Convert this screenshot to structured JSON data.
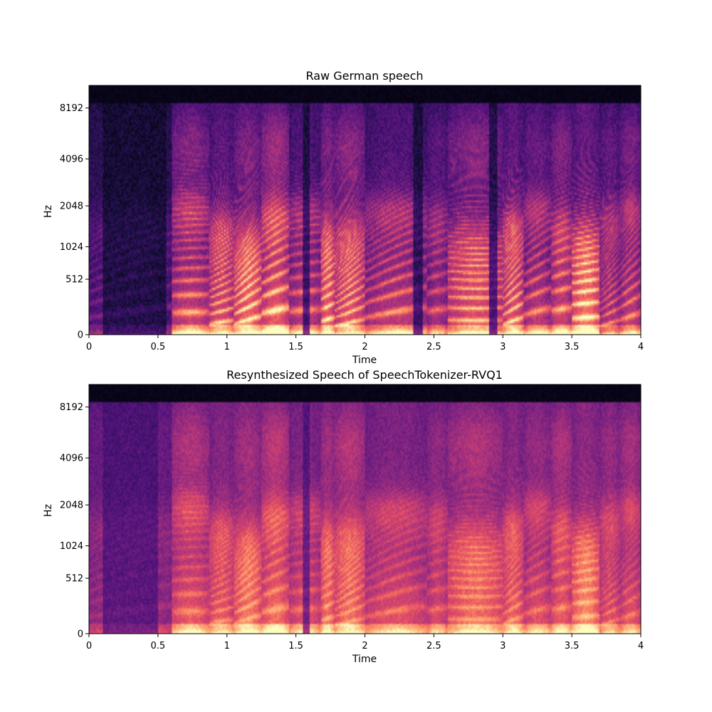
{
  "chart_data": [
    {
      "type": "heatmap",
      "title": "Raw German speech",
      "xlabel": "Time",
      "ylabel": "Hz",
      "xlim": [
        0,
        4
      ],
      "ylim": [
        0,
        11025
      ],
      "y_scale": "mel",
      "colormap": "magma",
      "x_ticks": [
        "0",
        "0.5",
        "1",
        "1.5",
        "2",
        "2.5",
        "3",
        "3.5",
        "4"
      ],
      "y_ticks": [
        "0",
        "512",
        "1024",
        "2048",
        "4096",
        "8192"
      ],
      "segment_onsets_s": [
        0.0,
        0.6,
        0.87,
        1.05,
        1.25,
        1.45,
        1.68,
        1.78,
        2.0,
        2.45,
        2.6,
        3.0,
        3.15,
        3.35,
        3.5,
        3.7,
        3.85
      ],
      "segment_intensity": [
        0.35,
        0.75,
        0.8,
        0.85,
        0.9,
        0.7,
        0.85,
        0.8,
        0.7,
        0.6,
        0.75,
        0.85,
        0.7,
        0.75,
        0.9,
        0.65,
        0.7
      ],
      "silence_intervals_s": [
        [
          0.1,
          0.5
        ],
        [
          0.5,
          0.56
        ],
        [
          1.55,
          1.6
        ],
        [
          2.35,
          2.42
        ],
        [
          2.9,
          2.96
        ]
      ],
      "top_band_dark": true
    },
    {
      "type": "heatmap",
      "title": "Resynthesized Speech of SpeechTokenizer-RVQ1",
      "xlabel": "Time",
      "ylabel": "Hz",
      "xlim": [
        0,
        4
      ],
      "ylim": [
        0,
        11025
      ],
      "y_scale": "mel",
      "colormap": "magma",
      "x_ticks": [
        "0",
        "0.5",
        "1",
        "1.5",
        "2",
        "2.5",
        "3",
        "3.5",
        "4"
      ],
      "y_ticks": [
        "0",
        "512",
        "1024",
        "2048",
        "4096",
        "8192"
      ],
      "segment_onsets_s": [
        0.0,
        0.6,
        0.87,
        1.05,
        1.25,
        1.45,
        1.68,
        1.78,
        2.0,
        2.45,
        2.6,
        3.0,
        3.15,
        3.35,
        3.5,
        3.7,
        3.85
      ],
      "segment_intensity": [
        0.45,
        0.8,
        0.8,
        0.85,
        0.9,
        0.75,
        0.85,
        0.85,
        0.75,
        0.7,
        0.8,
        0.85,
        0.75,
        0.8,
        0.9,
        0.75,
        0.75
      ],
      "silence_intervals_s": [
        [
          0.1,
          0.5
        ],
        [
          1.55,
          1.6
        ]
      ],
      "top_band_dark": true
    }
  ]
}
